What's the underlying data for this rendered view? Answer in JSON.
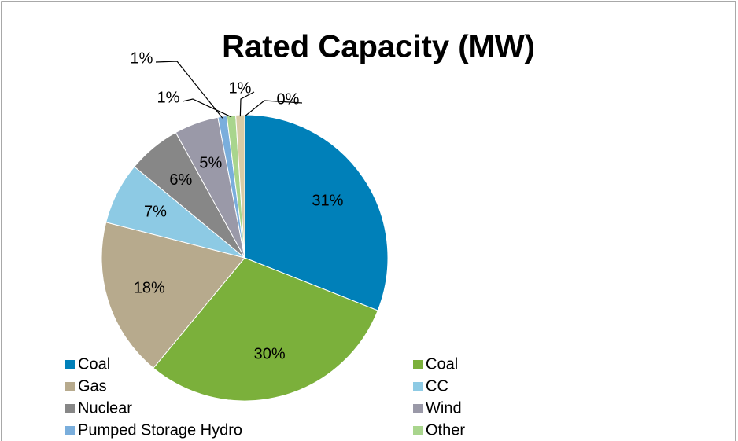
{
  "chart_data": {
    "type": "pie",
    "title": "Rated Capacity (MW)",
    "categories": [
      "Coal",
      "Coal",
      "Gas",
      "CC",
      "Nuclear",
      "Wind",
      "Pumped Storage Hydro",
      "Other",
      null,
      null
    ],
    "values": [
      31,
      30,
      18,
      7,
      6,
      5,
      1,
      1,
      1,
      0
    ],
    "value_labels": [
      "31%",
      "30%",
      "18%",
      "7%",
      "6%",
      "5%",
      "1%",
      "1%",
      "1%",
      "0%"
    ],
    "colors": [
      "#0080b9",
      "#7bb03b",
      "#b7aa8d",
      "#8dcae4",
      "#878787",
      "#9a99a8",
      "#7aaedc",
      "#a9d58d",
      "#d8cba5",
      "#8f8f8f"
    ],
    "legend": "bottom"
  }
}
